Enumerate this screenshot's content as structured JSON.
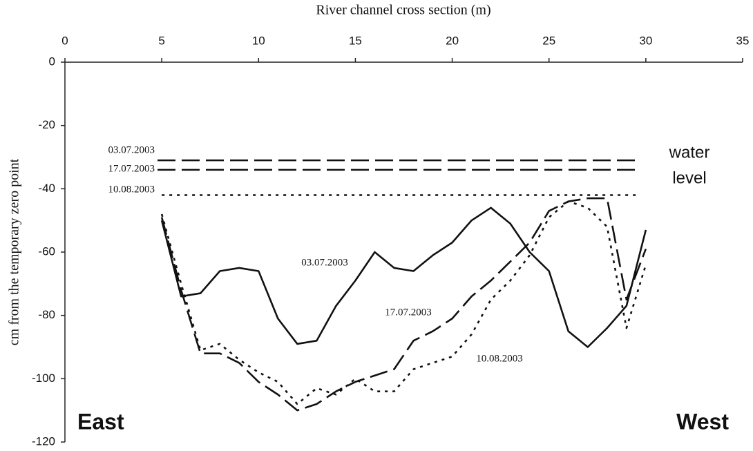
{
  "chart_data": {
    "type": "line",
    "title": "River channel cross section (m)",
    "y_label": "cm from the temporary zero point",
    "x": [
      5,
      6,
      7,
      8,
      9,
      10,
      11,
      12,
      13,
      14,
      15,
      16,
      17,
      18,
      19,
      20,
      21,
      22,
      23,
      24,
      25,
      26,
      27,
      28,
      29,
      30
    ],
    "series": [
      {
        "name": "03.07.2003",
        "color": "#111111",
        "style": "solid",
        "values": [
          -50,
          -74,
          -73,
          -66,
          -65,
          -66,
          -81,
          -89,
          -88,
          -77,
          -69,
          -60,
          -65,
          -66,
          -61,
          -57,
          -50,
          -46,
          -51,
          -60,
          -66,
          -85,
          -90,
          -84,
          -77,
          -53
        ]
      },
      {
        "name": "17.07.2003",
        "color": "#111111",
        "style": "dashed",
        "values": [
          -49,
          -72,
          -92,
          -92,
          -95,
          -101,
          -105,
          -110,
          -108,
          -104,
          -101,
          -99,
          -97,
          -88,
          -85,
          -81,
          -74,
          -69,
          -63,
          -57,
          -47,
          -44,
          -43,
          -43,
          -75,
          -59
        ]
      },
      {
        "name": "10.08.2003",
        "color": "#111111",
        "style": "dotted",
        "values": [
          -48,
          -70,
          -91,
          -89,
          -94,
          -98,
          -101,
          -108,
          -103,
          -105,
          -100,
          -104,
          -104,
          -97,
          -95,
          -93,
          -86,
          -75,
          -69,
          -61,
          -49,
          -44,
          -46,
          -52,
          -84,
          -64
        ]
      }
    ],
    "water_levels": [
      {
        "label": "03.07.2003",
        "value": -31,
        "style": "dashed"
      },
      {
        "label": "17.07.2003",
        "value": -34,
        "style": "dashed"
      },
      {
        "label": "10.08.2003",
        "value": -42,
        "style": "dotted"
      }
    ],
    "water_level_label": [
      "water",
      "level"
    ],
    "left_label": "East",
    "right_label": "West",
    "xlim": [
      0,
      35
    ],
    "xticks": [
      0,
      5,
      10,
      15,
      20,
      25,
      30,
      35
    ],
    "ylim": [
      -120,
      0
    ],
    "yticks": [
      0,
      -20,
      -40,
      -60,
      -80,
      -100,
      -120
    ]
  }
}
